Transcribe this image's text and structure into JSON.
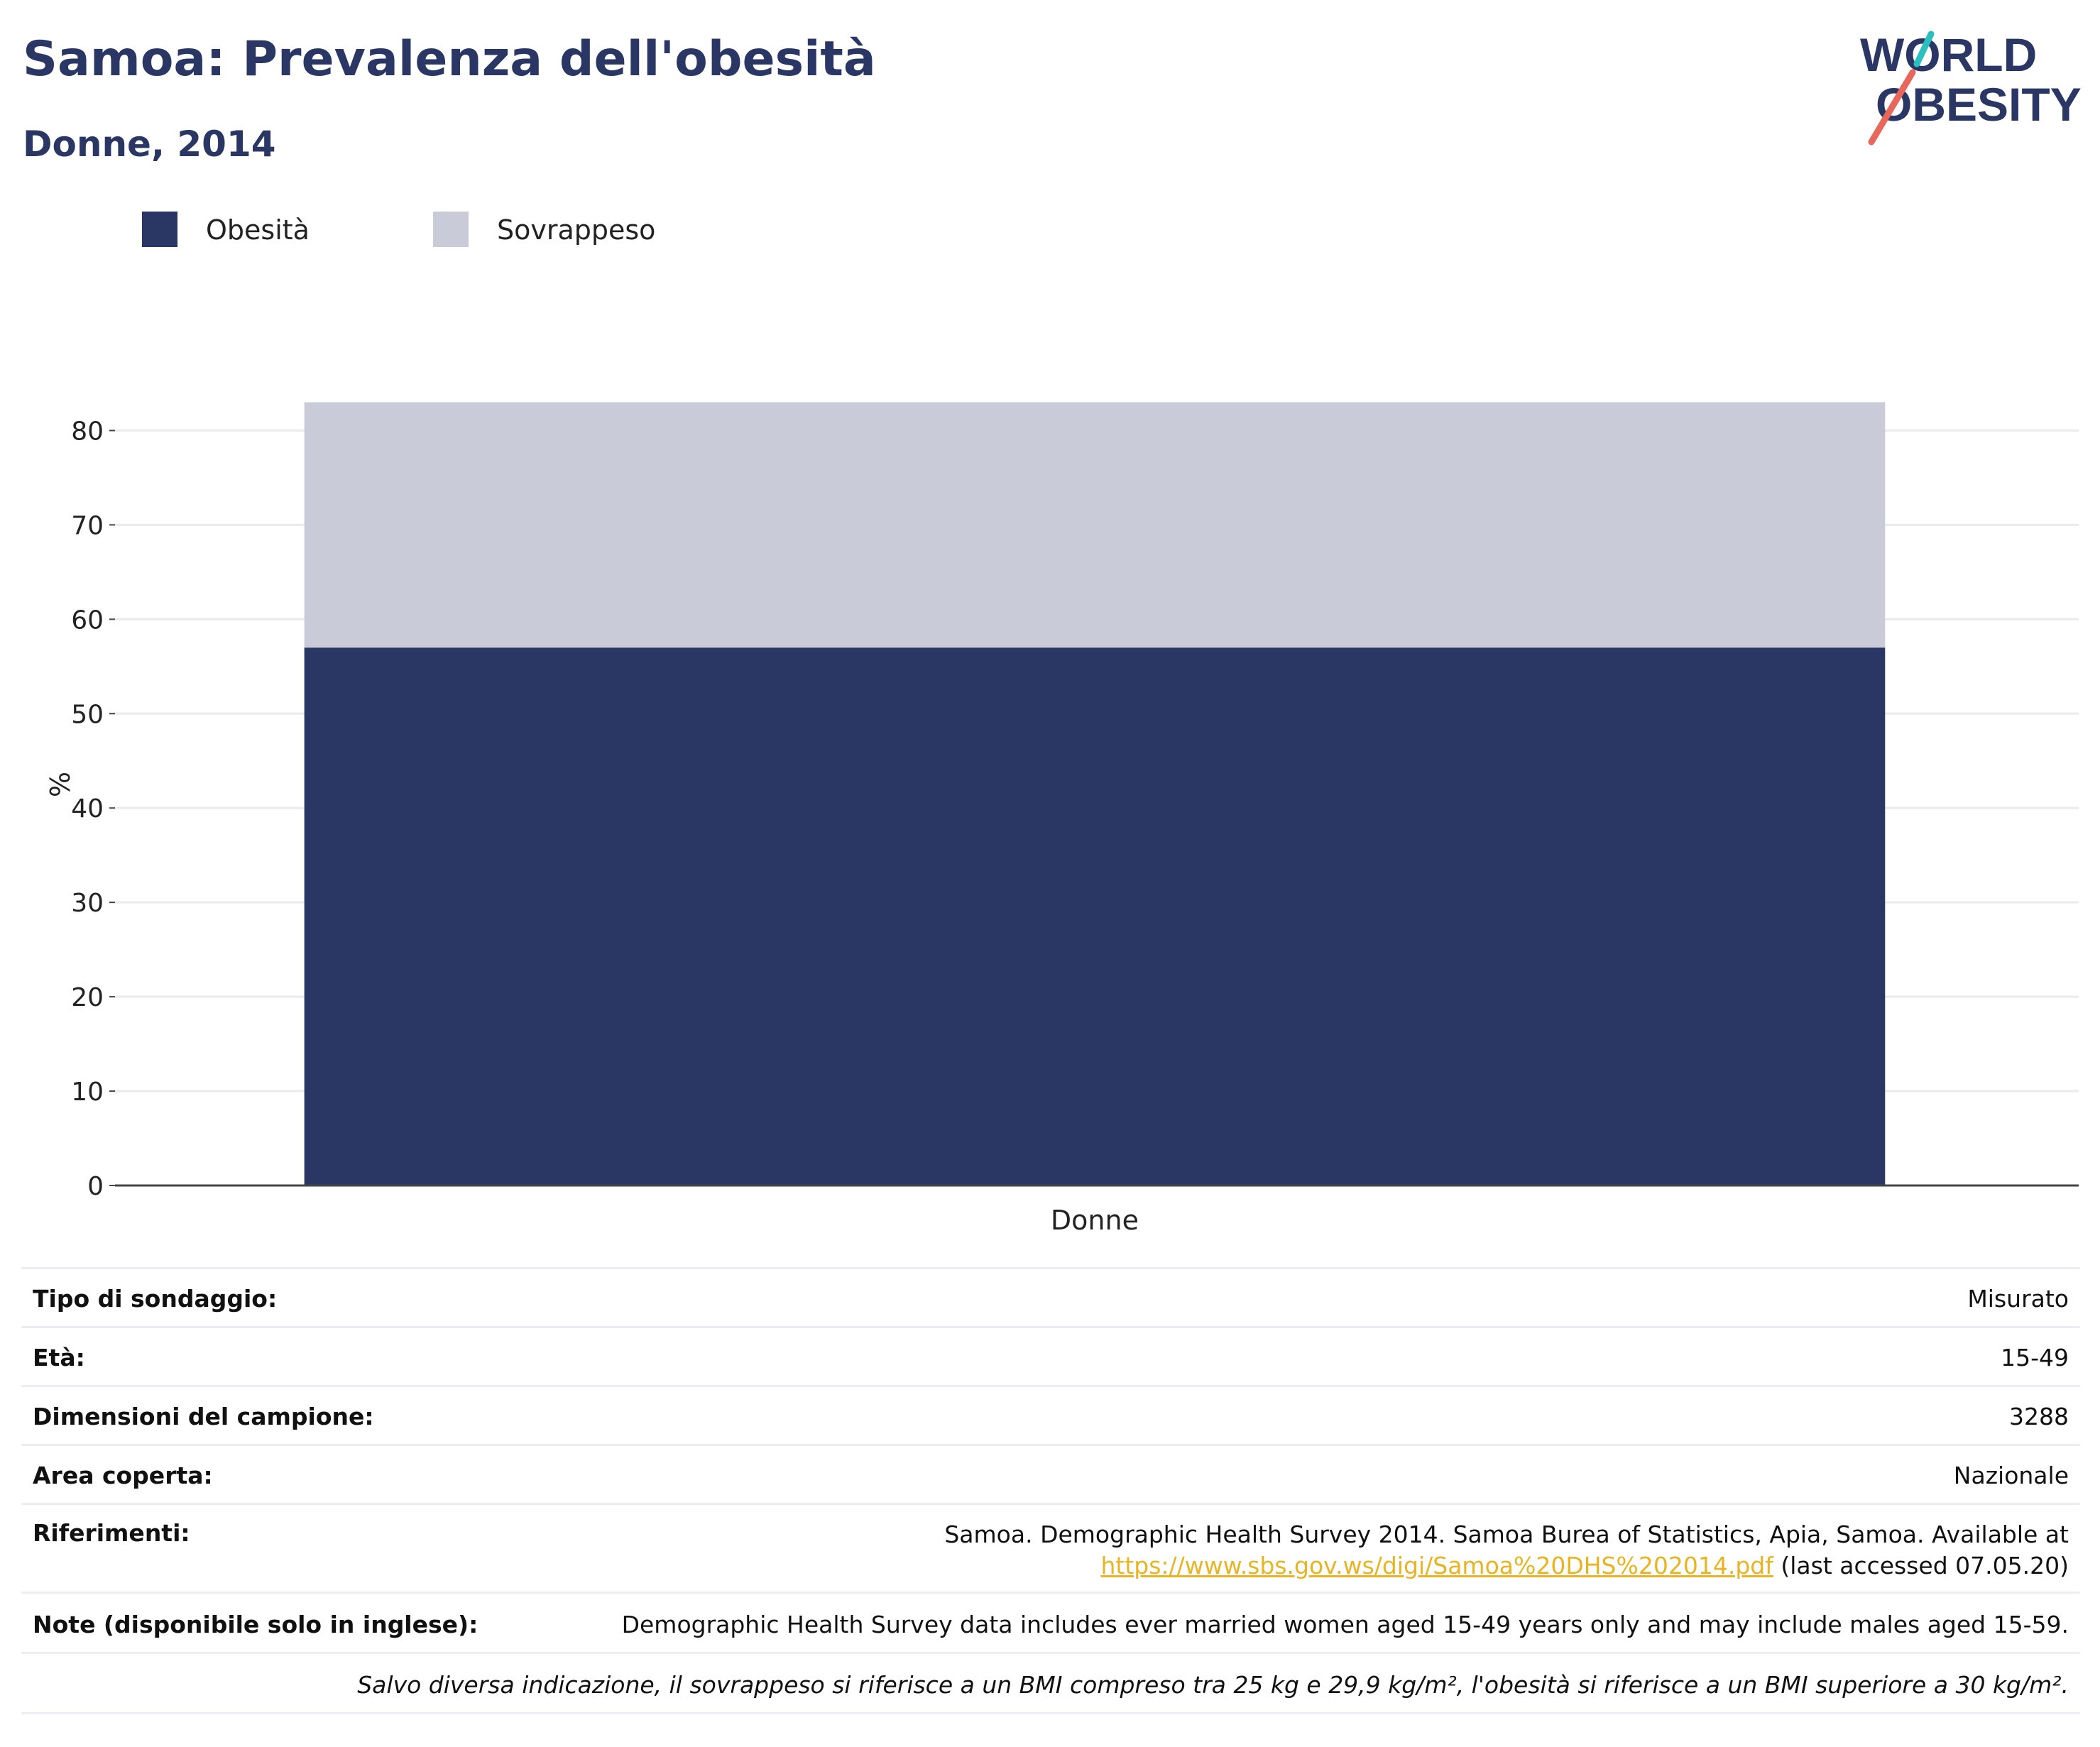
{
  "header": {
    "title": "Samoa: Prevalenza dell'obesità",
    "subtitle": "Donne, 2014"
  },
  "logo": {
    "line1": "WORLD",
    "line2": "OBESITY",
    "accent_colors": [
      "#2bbfc0",
      "#e8665a"
    ]
  },
  "legend": [
    {
      "label": "Obesità",
      "color": "#2a3764"
    },
    {
      "label": "Sovrappeso",
      "color": "#c9ccd8"
    }
  ],
  "chart_data": {
    "type": "bar",
    "stacked": true,
    "categories": [
      "Donne"
    ],
    "series": [
      {
        "name": "Obesità",
        "values": [
          57
        ],
        "color": "#2a3764"
      },
      {
        "name": "Sovrappeso",
        "values": [
          26
        ],
        "color": "#c9ccd8"
      }
    ],
    "ylabel": "%",
    "xlabel": "",
    "ylim": [
      0,
      85
    ],
    "yticks": [
      0,
      10,
      20,
      30,
      40,
      50,
      60,
      70,
      80
    ],
    "grid": true
  },
  "meta": {
    "survey_type": {
      "label": "Tipo di sondaggio:",
      "value": "Misurato"
    },
    "age": {
      "label": "Età:",
      "value": "15-49"
    },
    "sample_size": {
      "label": "Dimensioni del campione:",
      "value": "3288"
    },
    "area": {
      "label": "Area coperta:",
      "value": "Nazionale"
    },
    "references": {
      "label": "Riferimenti:",
      "text": "Samoa. Demographic Health Survey 2014. Samoa Burea of Statistics, Apia, Samoa. Available at",
      "link": "https://www.sbs.gov.ws/digi/Samoa%20DHS%202014.pdf",
      "suffix": " (last accessed 07.05.20)"
    },
    "notes": {
      "label": "Note (disponibile solo in inglese):",
      "value": "Demographic Health Survey data includes ever married women aged 15-49 years only and may include males aged 15-59."
    },
    "footnote": "Salvo diversa indicazione, il sovrappeso si riferisce a un BMI compreso tra 25 kg e 29,9 kg/m², l'obesità si riferisce a un BMI superiore a 30 kg/m²."
  }
}
